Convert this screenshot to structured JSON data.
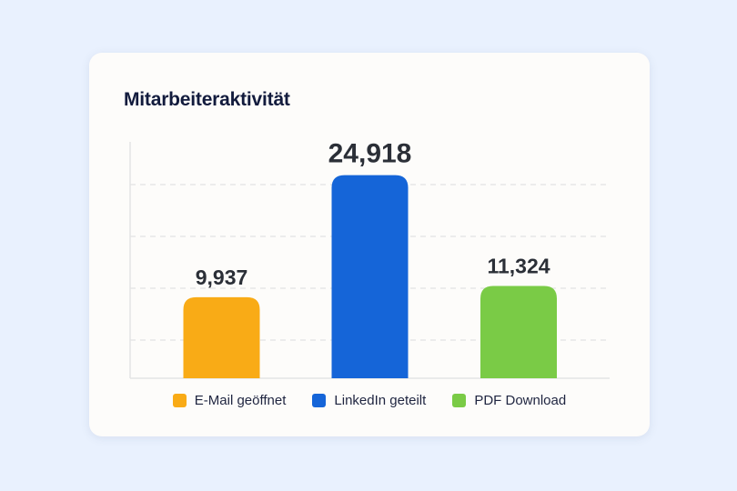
{
  "card": {
    "title": "Mitarbeiteraktivität"
  },
  "chart_data": {
    "type": "bar",
    "title": "Mitarbeiteraktivität",
    "categories": [
      "E-Mail geöffnet",
      "LinkedIn geteilt",
      "PDF Download"
    ],
    "values": [
      9937,
      24918,
      11324
    ],
    "value_labels": [
      "9,937",
      "24,918",
      "11,324"
    ],
    "colors": [
      "#f9ab16",
      "#1565d8",
      "#7acb46"
    ],
    "ylim": [
      0,
      29000
    ],
    "grid": "horizontal-dashed",
    "legend": "bottom",
    "xlabel": "",
    "ylabel": ""
  }
}
